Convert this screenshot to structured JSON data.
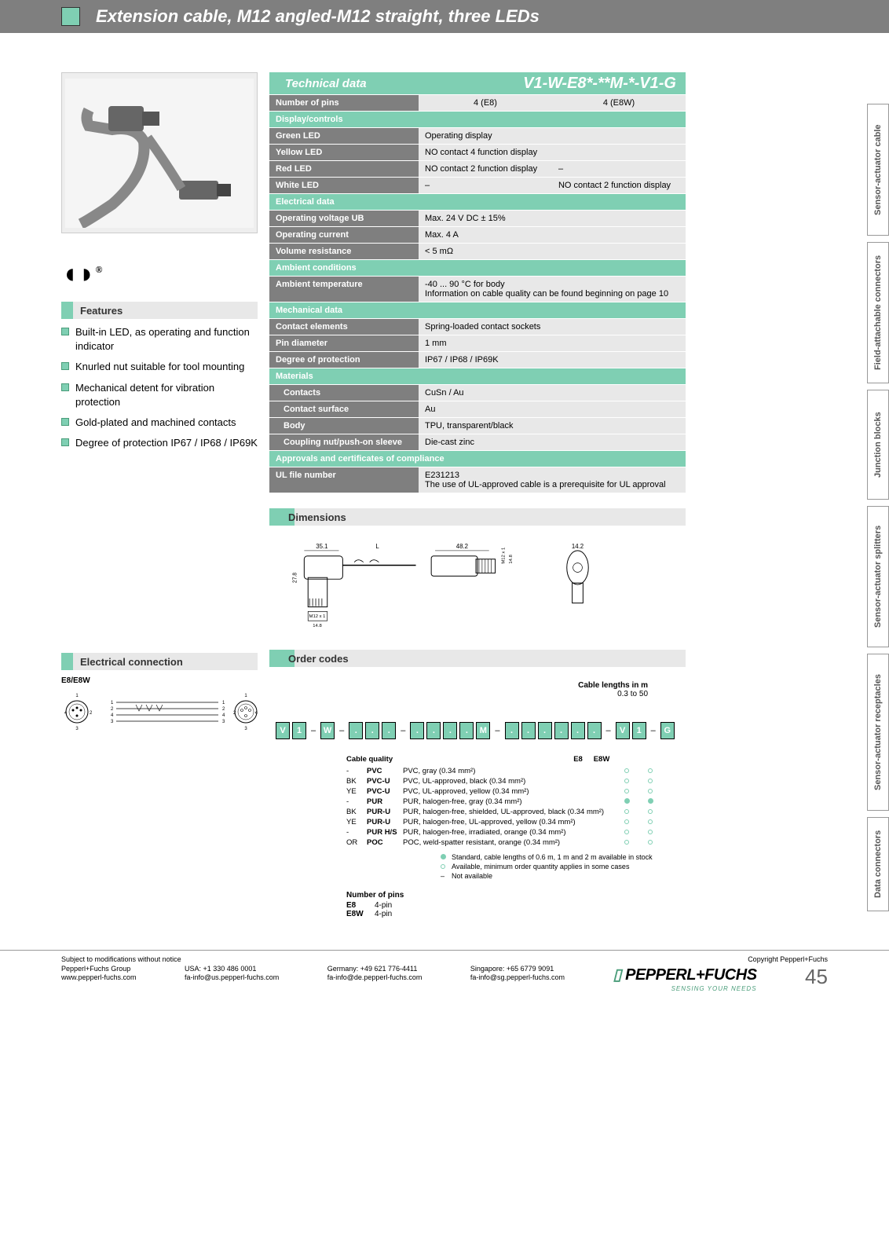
{
  "header": {
    "title": "Extension cable, M12 angled-M12 straight, three LEDs"
  },
  "features": {
    "title": "Features",
    "items": [
      "Built-in LED, as operating and function indicator",
      "Knurled nut suitable for tool mounting",
      "Mechanical detent for vibration protection",
      "Gold-plated and machined contacts",
      "Degree of protection IP67 / IP68 / IP69K"
    ]
  },
  "elconn": {
    "title": "Electrical connection",
    "label": "E8/E8W"
  },
  "tech": {
    "title": "Technical data",
    "model": "V1-W-E8*-**M-*-V1-G",
    "rows": {
      "num_pins": {
        "label": "Number of pins",
        "v1": "4 (E8)",
        "v2": "4 (E8W)"
      },
      "disp": {
        "label": "Display/controls"
      },
      "green": {
        "label": "Green LED",
        "v": "Operating display"
      },
      "yellow": {
        "label": "Yellow LED",
        "v": "NO contact 4 function display"
      },
      "red": {
        "label": "Red LED",
        "v1": "NO contact 2 function display",
        "v2": "–"
      },
      "white": {
        "label": "White LED",
        "v1": "–",
        "v2": "NO contact 2 function display"
      },
      "eldata": {
        "label": "Electrical data"
      },
      "voltage": {
        "label": "Operating voltage UB",
        "v": "Max. 24 V DC ± 15%"
      },
      "current": {
        "label": "Operating current",
        "v": "Max. 4 A"
      },
      "volres": {
        "label": "Volume resistance",
        "v": "< 5 mΩ"
      },
      "ambient": {
        "label": "Ambient conditions"
      },
      "ambtemp": {
        "label": "Ambient temperature",
        "v": "-40 ... 90 °C for body\nInformation on cable quality can be found beginning on page 10"
      },
      "mech": {
        "label": "Mechanical data"
      },
      "contel": {
        "label": "Contact elements",
        "v": "Spring-loaded contact sockets"
      },
      "pindia": {
        "label": "Pin diameter",
        "v": "1 mm"
      },
      "degprot": {
        "label": "Degree of protection",
        "v": "IP67 / IP68 / IP69K"
      },
      "mat": {
        "label": "Materials"
      },
      "contacts": {
        "label": "Contacts",
        "v": "CuSn / Au"
      },
      "contsurf": {
        "label": "Contact surface",
        "v": "Au"
      },
      "body": {
        "label": "Body",
        "v": "TPU, transparent/black"
      },
      "coupling": {
        "label": "Coupling nut/push-on sleeve",
        "v": "Die-cast zinc"
      },
      "appr": {
        "label": "Approvals and certificates of compliance"
      },
      "ulfile": {
        "label": "UL file number",
        "v": "E231213\nThe use of UL-approved cable is a prerequisite for UL approval"
      }
    }
  },
  "dimensions": {
    "title": "Dimensions",
    "d1": "35.1",
    "d2": "L",
    "d3": "48.2",
    "d4": "14.2",
    "d5": "27.8",
    "d6": "M12 x 1",
    "d7": "14.8"
  },
  "order": {
    "title": "Order codes",
    "cable_len_label": "Cable lengths in m",
    "cable_len_range": "0.3 to 50",
    "boxes": [
      "V",
      "1",
      "",
      "W",
      "",
      "",
      "",
      "",
      "",
      "",
      "",
      "",
      "",
      "",
      "M",
      "",
      "",
      "",
      "",
      "",
      "",
      "",
      "",
      "V",
      "1",
      "",
      "G"
    ],
    "cq": {
      "title": "Cable quality",
      "col1": "E8",
      "col2": "E8W",
      "rows": [
        {
          "c1": "-",
          "c2": "PVC",
          "c3": "PVC, gray (0.34 mm²)",
          "e8": "open",
          "e8w": "open"
        },
        {
          "c1": "BK",
          "c2": "PVC-U",
          "c3": "PVC, UL-approved, black (0.34 mm²)",
          "e8": "open",
          "e8w": "open"
        },
        {
          "c1": "YE",
          "c2": "PVC-U",
          "c3": "PVC, UL-approved, yellow (0.34 mm²)",
          "e8": "open",
          "e8w": "open"
        },
        {
          "c1": "-",
          "c2": "PUR",
          "c3": "PUR, halogen-free, gray (0.34 mm²)",
          "e8": "filled",
          "e8w": "filled"
        },
        {
          "c1": "BK",
          "c2": "PUR-U",
          "c3": "PUR, halogen-free, shielded, UL-approved, black (0.34 mm²)",
          "e8": "open",
          "e8w": "open"
        },
        {
          "c1": "YE",
          "c2": "PUR-U",
          "c3": "PUR, halogen-free, UL-approved, yellow (0.34 mm²)",
          "e8": "open",
          "e8w": "open"
        },
        {
          "c1": "-",
          "c2": "PUR H/S",
          "c3": "PUR, halogen-free, irradiated, orange (0.34 mm²)",
          "e8": "open",
          "e8w": "open"
        },
        {
          "c1": "OR",
          "c2": "POC",
          "c3": "POC, weld-spatter resistant, orange (0.34 mm²)",
          "e8": "open",
          "e8w": "open"
        }
      ],
      "legend": [
        "Standard, cable lengths of 0.6 m, 1 m and 2 m available in stock",
        "Available, minimum order quantity applies in some cases",
        "Not available"
      ]
    },
    "pins": {
      "title": "Number of pins",
      "r": [
        {
          "k": "E8",
          "v": "4-pin"
        },
        {
          "k": "E8W",
          "v": "4-pin"
        }
      ]
    }
  },
  "tabs": [
    "Sensor-actuator cable",
    "Field-attachable connectors",
    "Junction blocks",
    "Sensor-actuator splitters",
    "Sensor-actuator receptacles",
    "Data connectors"
  ],
  "footer": {
    "subject": "Subject to modifications without notice",
    "copyright": "Copyright Pepperl+Fuchs",
    "c1a": "Pepperl+Fuchs Group",
    "c1b": "www.pepperl-fuchs.com",
    "c2a": "USA: +1 330 486 0001",
    "c2b": "fa-info@us.pepperl-fuchs.com",
    "c3a": "Germany: +49 621 776-4411",
    "c3b": "fa-info@de.pepperl-fuchs.com",
    "c4a": "Singapore: +65 6779 9091",
    "c4b": "fa-info@sg.pepperl-fuchs.com",
    "brand": "PEPPERL+FUCHS",
    "tag": "SENSING YOUR NEEDS",
    "page": "45"
  },
  "colors": {
    "teal": "#7fcfb3",
    "gray": "#7f7f7f",
    "lightgray": "#e8e8e8"
  }
}
